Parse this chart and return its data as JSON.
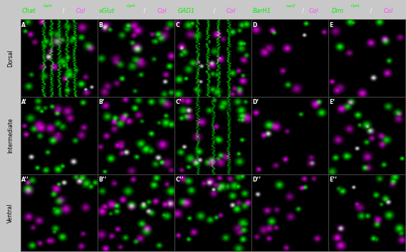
{
  "row_labels": [
    "Dorsal",
    "Intermediate",
    "Ventral"
  ],
  "panel_labels": [
    [
      "A",
      "B",
      "C",
      "D",
      "E"
    ],
    [
      "A’",
      "B’",
      "C’",
      "D’",
      "E’"
    ],
    [
      "A’’",
      "B’’",
      "C’’",
      "D’’",
      "E’’"
    ]
  ],
  "col_headers": [
    {
      "main": "Chat",
      "super": "Gal4",
      "sep": " / ",
      "col_label": "Col"
    },
    {
      "main": "vGlut",
      "super": "Gal4",
      "sep": " / ",
      "col_label": "Col"
    },
    {
      "main": "GAD1",
      "super": "",
      "sep": " / ",
      "col_label": "Col"
    },
    {
      "main": "BarH1",
      "super": "LacZ",
      "sep": "/",
      "col_label": "Col"
    },
    {
      "main": "Dim",
      "super": "Gal4",
      "sep": " / ",
      "col_label": "Col"
    }
  ],
  "green_color": "#00ee00",
  "magenta_color": "#ff44ff",
  "white_color": "#ffffff",
  "black_color": "#000000",
  "figure_width": 5.7,
  "figure_height": 3.54,
  "dpi": 100,
  "cell_configs": [
    [
      {
        "green_density": 25,
        "magenta_density": 12,
        "has_fibers": true,
        "fiber_brightness": 0.9
      },
      {
        "green_density": 22,
        "magenta_density": 18,
        "has_fibers": false,
        "fiber_brightness": 0
      },
      {
        "green_density": 30,
        "magenta_density": 14,
        "has_fibers": true,
        "fiber_brightness": 0.85
      },
      {
        "green_density": 3,
        "magenta_density": 8,
        "has_fibers": false,
        "fiber_brightness": 0
      },
      {
        "green_density": 6,
        "magenta_density": 10,
        "has_fibers": false,
        "fiber_brightness": 0
      }
    ],
    [
      {
        "green_density": 20,
        "magenta_density": 12,
        "has_fibers": false,
        "fiber_brightness": 0
      },
      {
        "green_density": 22,
        "magenta_density": 18,
        "has_fibers": false,
        "fiber_brightness": 0
      },
      {
        "green_density": 28,
        "magenta_density": 12,
        "has_fibers": true,
        "fiber_brightness": 0.7
      },
      {
        "green_density": 5,
        "magenta_density": 10,
        "has_fibers": false,
        "fiber_brightness": 0
      },
      {
        "green_density": 18,
        "magenta_density": 12,
        "has_fibers": false,
        "fiber_brightness": 0
      }
    ],
    [
      {
        "green_density": 16,
        "magenta_density": 14,
        "has_fibers": false,
        "fiber_brightness": 0
      },
      {
        "green_density": 20,
        "magenta_density": 18,
        "has_fibers": false,
        "fiber_brightness": 0
      },
      {
        "green_density": 25,
        "magenta_density": 18,
        "has_fibers": false,
        "fiber_brightness": 0
      },
      {
        "green_density": 4,
        "magenta_density": 14,
        "has_fibers": false,
        "fiber_brightness": 0
      },
      {
        "green_density": 18,
        "magenta_density": 8,
        "has_fibers": false,
        "fiber_brightness": 0
      }
    ]
  ]
}
